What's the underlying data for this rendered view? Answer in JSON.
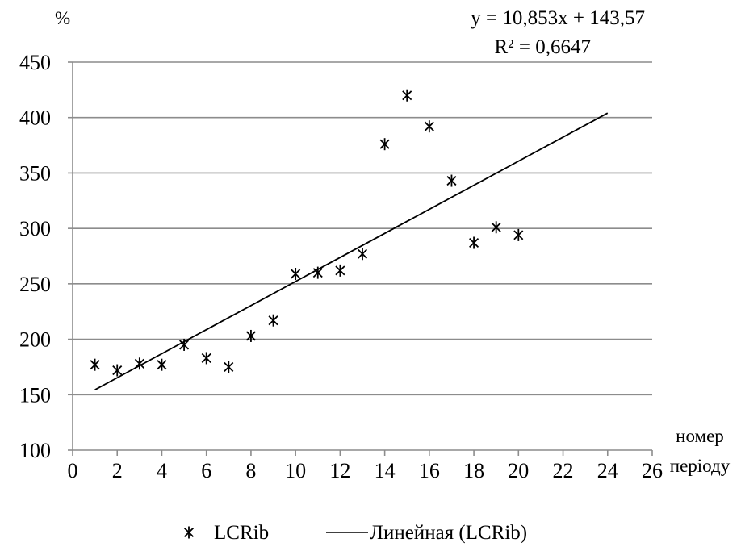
{
  "chart_data": {
    "type": "scatter",
    "title": "",
    "ylabel": "%",
    "xlabel_line1": "номер",
    "xlabel_line2": "періоду",
    "xlim": [
      0,
      26
    ],
    "ylim": [
      100,
      450
    ],
    "x_ticks": [
      "0",
      "2",
      "4",
      "6",
      "8",
      "10",
      "12",
      "14",
      "16",
      "18",
      "20",
      "22",
      "24",
      "26"
    ],
    "y_ticks": [
      "100",
      "150",
      "200",
      "250",
      "300",
      "350",
      "400",
      "450"
    ],
    "grid": "horizontal",
    "legend_position": "bottom",
    "series": [
      {
        "name": "LCRib",
        "marker": "asterisk",
        "color": "#000000",
        "x": [
          1,
          2,
          3,
          4,
          5,
          6,
          7,
          8,
          9,
          10,
          11,
          12,
          13,
          14,
          15,
          16,
          17,
          18,
          19,
          20
        ],
        "y": [
          177,
          172,
          178,
          177,
          195,
          183,
          175,
          203,
          217,
          259,
          260,
          262,
          277,
          376,
          420,
          392,
          343,
          287,
          301,
          294
        ]
      }
    ],
    "trendline": {
      "name": "Линейная (LCRib)",
      "type": "linear",
      "slope": 10.853,
      "intercept": 143.57,
      "x_range": [
        1,
        24
      ],
      "equation": "y = 10,853x + 143,57",
      "r_squared": "R² = 0,6647"
    }
  }
}
